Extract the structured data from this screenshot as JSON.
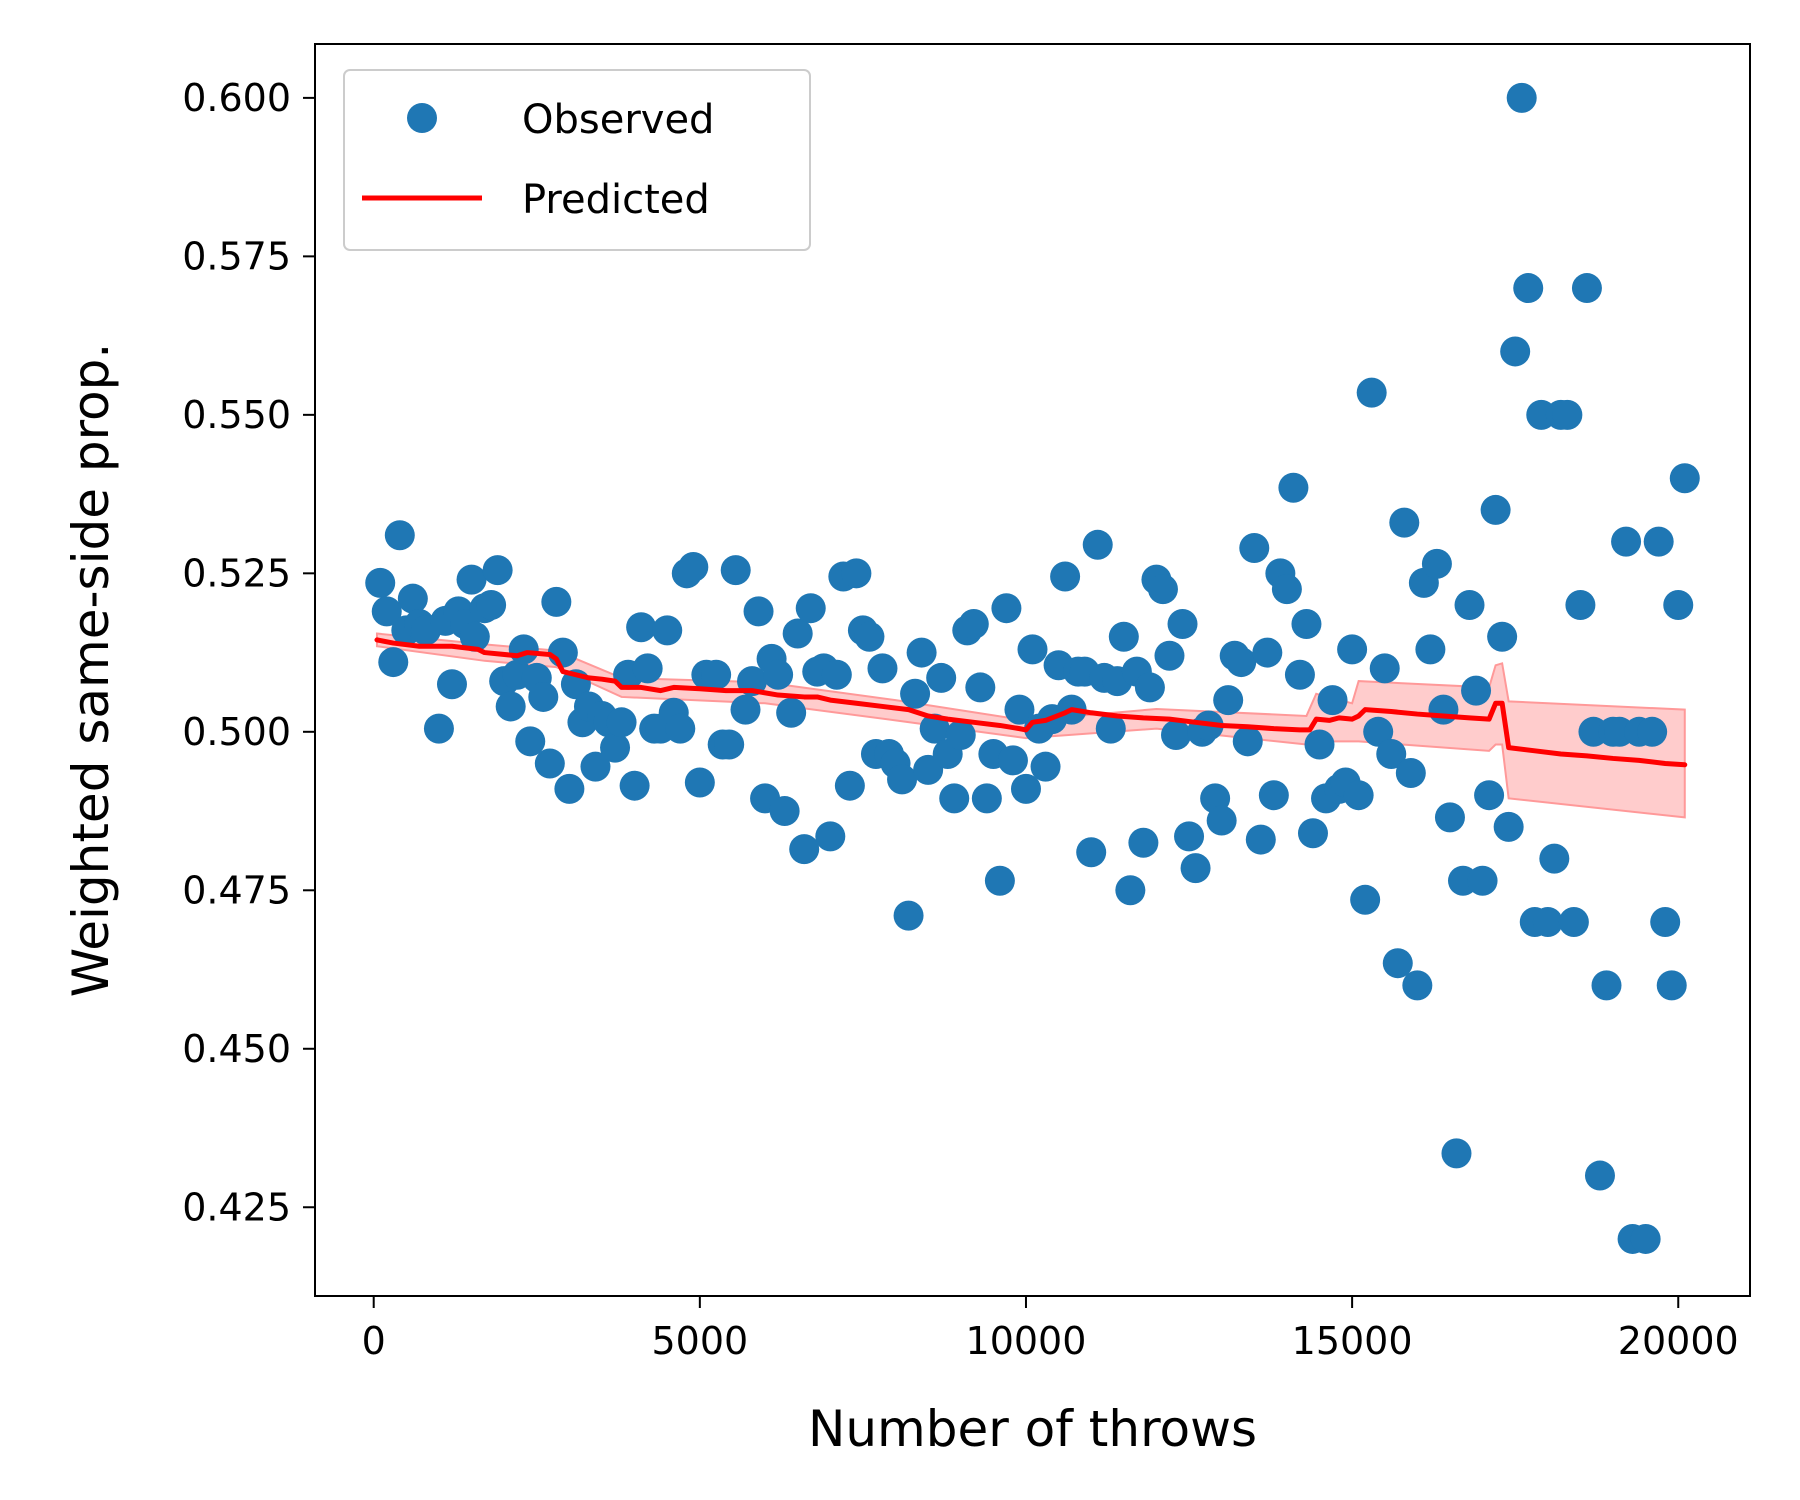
{
  "chart_data": {
    "type": "scatter",
    "title": "",
    "xlabel": "Number of throws",
    "ylabel": "Weighted same-side prop.",
    "xlim": [
      -900,
      21100
    ],
    "ylim": [
      0.411,
      0.6085
    ],
    "xticks": [
      0,
      5000,
      10000,
      15000,
      20000
    ],
    "xtick_labels": [
      "0",
      "5000",
      "10000",
      "15000",
      "20000"
    ],
    "yticks": [
      0.425,
      0.45,
      0.475,
      0.5,
      0.525,
      0.55,
      0.575,
      0.6
    ],
    "ytick_labels": [
      "0.425",
      "0.450",
      "0.475",
      "0.500",
      "0.525",
      "0.550",
      "0.575",
      "0.600"
    ],
    "grid": false,
    "legend": {
      "position": "top-left",
      "entries": [
        {
          "label": "Observed",
          "marker": "circle",
          "color": "#1f77b4"
        },
        {
          "label": "Predicted",
          "marker": "line",
          "color": "#ff0000"
        }
      ]
    },
    "series": [
      {
        "name": "Observed",
        "kind": "scatter",
        "color": "#1f77b4",
        "points": [
          [
            100,
            0.5235
          ],
          [
            200,
            0.519
          ],
          [
            300,
            0.511
          ],
          [
            400,
            0.531
          ],
          [
            500,
            0.516
          ],
          [
            600,
            0.521
          ],
          [
            700,
            0.517
          ],
          [
            800,
            0.516
          ],
          [
            1000,
            0.5005
          ],
          [
            1100,
            0.5175
          ],
          [
            1200,
            0.5075
          ],
          [
            1300,
            0.519
          ],
          [
            1400,
            0.517
          ],
          [
            1500,
            0.524
          ],
          [
            1550,
            0.515
          ],
          [
            1700,
            0.5195
          ],
          [
            1800,
            0.52
          ],
          [
            1900,
            0.5255
          ],
          [
            2000,
            0.508
          ],
          [
            2100,
            0.504
          ],
          [
            2200,
            0.509
          ],
          [
            2300,
            0.513
          ],
          [
            2400,
            0.4985
          ],
          [
            2500,
            0.5085
          ],
          [
            2600,
            0.5055
          ],
          [
            2700,
            0.495
          ],
          [
            2800,
            0.5205
          ],
          [
            2900,
            0.5125
          ],
          [
            3000,
            0.491
          ],
          [
            3100,
            0.5075
          ],
          [
            3200,
            0.5015
          ],
          [
            3300,
            0.504
          ],
          [
            3400,
            0.4945
          ],
          [
            3500,
            0.5025
          ],
          [
            3600,
            0.5015
          ],
          [
            3700,
            0.4975
          ],
          [
            3800,
            0.5015
          ],
          [
            3900,
            0.509
          ],
          [
            4000,
            0.4915
          ],
          [
            4100,
            0.5165
          ],
          [
            4200,
            0.51
          ],
          [
            4300,
            0.5005
          ],
          [
            4400,
            0.5005
          ],
          [
            4500,
            0.516
          ],
          [
            4600,
            0.503
          ],
          [
            4700,
            0.5005
          ],
          [
            4800,
            0.525
          ],
          [
            4900,
            0.526
          ],
          [
            5000,
            0.492
          ],
          [
            5100,
            0.509
          ],
          [
            5250,
            0.509
          ],
          [
            5350,
            0.498
          ],
          [
            5450,
            0.498
          ],
          [
            5550,
            0.5255
          ],
          [
            5700,
            0.5035
          ],
          [
            5800,
            0.508
          ],
          [
            5900,
            0.519
          ],
          [
            6000,
            0.4895
          ],
          [
            6100,
            0.5115
          ],
          [
            6200,
            0.509
          ],
          [
            6300,
            0.4875
          ],
          [
            6400,
            0.503
          ],
          [
            6500,
            0.5155
          ],
          [
            6600,
            0.4815
          ],
          [
            6700,
            0.5195
          ],
          [
            6800,
            0.5095
          ],
          [
            6900,
            0.51
          ],
          [
            7000,
            0.4835
          ],
          [
            7100,
            0.509
          ],
          [
            7200,
            0.5245
          ],
          [
            7300,
            0.4915
          ],
          [
            7400,
            0.525
          ],
          [
            7500,
            0.516
          ],
          [
            7600,
            0.515
          ],
          [
            7700,
            0.4965
          ],
          [
            7800,
            0.51
          ],
          [
            7900,
            0.4965
          ],
          [
            8000,
            0.495
          ],
          [
            8100,
            0.4925
          ],
          [
            8200,
            0.471
          ],
          [
            8300,
            0.506
          ],
          [
            8400,
            0.5125
          ],
          [
            8500,
            0.494
          ],
          [
            8600,
            0.5005
          ],
          [
            8700,
            0.5085
          ],
          [
            8800,
            0.4965
          ],
          [
            8900,
            0.4895
          ],
          [
            9000,
            0.4995
          ],
          [
            9100,
            0.516
          ],
          [
            9200,
            0.517
          ],
          [
            9300,
            0.507
          ],
          [
            9400,
            0.4895
          ],
          [
            9500,
            0.4965
          ],
          [
            9600,
            0.4765
          ],
          [
            9700,
            0.5195
          ],
          [
            9800,
            0.4955
          ],
          [
            9900,
            0.5035
          ],
          [
            10000,
            0.491
          ],
          [
            10100,
            0.513
          ],
          [
            10200,
            0.5005
          ],
          [
            10300,
            0.4945
          ],
          [
            10400,
            0.502
          ],
          [
            10500,
            0.5105
          ],
          [
            10600,
            0.5245
          ],
          [
            10700,
            0.5035
          ],
          [
            10800,
            0.5095
          ],
          [
            10900,
            0.5095
          ],
          [
            11000,
            0.481
          ],
          [
            11100,
            0.5295
          ],
          [
            11200,
            0.5085
          ],
          [
            11300,
            0.5005
          ],
          [
            11400,
            0.508
          ],
          [
            11500,
            0.515
          ],
          [
            11600,
            0.475
          ],
          [
            11700,
            0.5095
          ],
          [
            11800,
            0.4825
          ],
          [
            11900,
            0.507
          ],
          [
            12000,
            0.524
          ],
          [
            12100,
            0.5225
          ],
          [
            12200,
            0.512
          ],
          [
            12300,
            0.4995
          ],
          [
            12400,
            0.517
          ],
          [
            12500,
            0.4835
          ],
          [
            12600,
            0.4785
          ],
          [
            12700,
            0.5
          ],
          [
            12800,
            0.501
          ],
          [
            12900,
            0.4895
          ],
          [
            13000,
            0.486
          ],
          [
            13100,
            0.505
          ],
          [
            13200,
            0.512
          ],
          [
            13300,
            0.511
          ],
          [
            13400,
            0.4985
          ],
          [
            13500,
            0.529
          ],
          [
            13600,
            0.483
          ],
          [
            13700,
            0.5125
          ],
          [
            13800,
            0.49
          ],
          [
            13900,
            0.525
          ],
          [
            14000,
            0.5225
          ],
          [
            14100,
            0.5385
          ],
          [
            14200,
            0.509
          ],
          [
            14300,
            0.517
          ],
          [
            14400,
            0.484
          ],
          [
            14500,
            0.498
          ],
          [
            14600,
            0.4895
          ],
          [
            14700,
            0.505
          ],
          [
            14800,
            0.491
          ],
          [
            14900,
            0.492
          ],
          [
            15000,
            0.513
          ],
          [
            15100,
            0.49
          ],
          [
            15200,
            0.4735
          ],
          [
            15300,
            0.5535
          ],
          [
            15400,
            0.5
          ],
          [
            15500,
            0.51
          ],
          [
            15600,
            0.4965
          ],
          [
            15700,
            0.4635
          ],
          [
            15800,
            0.533
          ],
          [
            15900,
            0.4935
          ],
          [
            16000,
            0.46
          ],
          [
            16100,
            0.5235
          ],
          [
            16200,
            0.513
          ],
          [
            16300,
            0.5265
          ],
          [
            16400,
            0.5035
          ],
          [
            16500,
            0.4865
          ],
          [
            16600,
            0.4335
          ],
          [
            16700,
            0.4765
          ],
          [
            16800,
            0.52
          ],
          [
            16900,
            0.5065
          ],
          [
            17000,
            0.4765
          ],
          [
            17100,
            0.49
          ],
          [
            17200,
            0.535
          ],
          [
            17300,
            0.515
          ],
          [
            17400,
            0.485
          ],
          [
            17500,
            0.56
          ],
          [
            17600,
            0.6
          ],
          [
            17700,
            0.57
          ],
          [
            17800,
            0.47
          ],
          [
            17900,
            0.55
          ],
          [
            18000,
            0.47
          ],
          [
            18100,
            0.48
          ],
          [
            18200,
            0.55
          ],
          [
            18300,
            0.55
          ],
          [
            18400,
            0.47
          ],
          [
            18500,
            0.52
          ],
          [
            18600,
            0.57
          ],
          [
            18700,
            0.5
          ],
          [
            18800,
            0.43
          ],
          [
            18900,
            0.46
          ],
          [
            19000,
            0.5
          ],
          [
            19100,
            0.5
          ],
          [
            19200,
            0.53
          ],
          [
            19300,
            0.42
          ],
          [
            19400,
            0.5
          ],
          [
            19500,
            0.42
          ],
          [
            19600,
            0.5
          ],
          [
            19700,
            0.53
          ],
          [
            19800,
            0.47
          ],
          [
            19900,
            0.46
          ],
          [
            20000,
            0.52
          ],
          [
            20100,
            0.54
          ]
        ]
      },
      {
        "name": "Predicted",
        "kind": "line",
        "color": "#ff0000",
        "band_color": "#ff9999",
        "points": [
          [
            50,
            0.5145
          ],
          [
            300,
            0.514
          ],
          [
            700,
            0.5135
          ],
          [
            1200,
            0.5135
          ],
          [
            1600,
            0.513
          ],
          [
            1700,
            0.5125
          ],
          [
            2200,
            0.512
          ],
          [
            2350,
            0.5125
          ],
          [
            2700,
            0.5122
          ],
          [
            2800,
            0.5115
          ],
          [
            2900,
            0.5095
          ],
          [
            3100,
            0.509
          ],
          [
            3300,
            0.5085
          ],
          [
            3500,
            0.5083
          ],
          [
            3700,
            0.508
          ],
          [
            3800,
            0.507
          ],
          [
            4100,
            0.507
          ],
          [
            4400,
            0.5065
          ],
          [
            4600,
            0.507
          ],
          [
            5000,
            0.5068
          ],
          [
            5400,
            0.5065
          ],
          [
            5800,
            0.5065
          ],
          [
            6200,
            0.5058
          ],
          [
            6600,
            0.5055
          ],
          [
            6800,
            0.5055
          ],
          [
            7000,
            0.505
          ],
          [
            7400,
            0.5045
          ],
          [
            7800,
            0.504
          ],
          [
            8200,
            0.5035
          ],
          [
            8500,
            0.5025
          ],
          [
            8800,
            0.502
          ],
          [
            9200,
            0.5015
          ],
          [
            9600,
            0.501
          ],
          [
            9900,
            0.5005
          ],
          [
            10000,
            0.5003
          ],
          [
            10100,
            0.5015
          ],
          [
            10300,
            0.5018
          ],
          [
            10600,
            0.503
          ],
          [
            10700,
            0.5035
          ],
          [
            11000,
            0.503
          ],
          [
            11400,
            0.5025
          ],
          [
            11800,
            0.5022
          ],
          [
            12200,
            0.502
          ],
          [
            12600,
            0.5015
          ],
          [
            13000,
            0.501
          ],
          [
            13400,
            0.5008
          ],
          [
            13800,
            0.5005
          ],
          [
            14200,
            0.5003
          ],
          [
            14350,
            0.5003
          ],
          [
            14450,
            0.502
          ],
          [
            14650,
            0.5018
          ],
          [
            14800,
            0.5022
          ],
          [
            15000,
            0.502
          ],
          [
            15100,
            0.5025
          ],
          [
            15200,
            0.5035
          ],
          [
            15600,
            0.5032
          ],
          [
            16000,
            0.5028
          ],
          [
            16400,
            0.5025
          ],
          [
            16800,
            0.5022
          ],
          [
            17100,
            0.502
          ],
          [
            17200,
            0.5045
          ],
          [
            17300,
            0.5045
          ],
          [
            17400,
            0.4975
          ],
          [
            17800,
            0.497
          ],
          [
            18200,
            0.4965
          ],
          [
            18600,
            0.4962
          ],
          [
            19000,
            0.4958
          ],
          [
            19400,
            0.4955
          ],
          [
            19800,
            0.495
          ],
          [
            20100,
            0.4948
          ]
        ],
        "band": [
          [
            50,
            0.5155,
            0.5135
          ],
          [
            1700,
            0.5138,
            0.5112
          ],
          [
            2800,
            0.5128,
            0.5102
          ],
          [
            3800,
            0.5085,
            0.5055
          ],
          [
            6000,
            0.5078,
            0.5045
          ],
          [
            8000,
            0.505,
            0.5018
          ],
          [
            10000,
            0.5018,
            0.499
          ],
          [
            12000,
            0.5036,
            0.5005
          ],
          [
            14300,
            0.5025,
            0.498
          ],
          [
            14450,
            0.506,
            0.4985
          ],
          [
            15000,
            0.5045,
            0.4985
          ],
          [
            15100,
            0.508,
            0.4985
          ],
          [
            17100,
            0.507,
            0.497
          ],
          [
            17200,
            0.5105,
            0.498
          ],
          [
            17300,
            0.5108,
            0.498
          ],
          [
            17400,
            0.5048,
            0.4895
          ],
          [
            20100,
            0.5035,
            0.4865
          ]
        ]
      }
    ]
  }
}
